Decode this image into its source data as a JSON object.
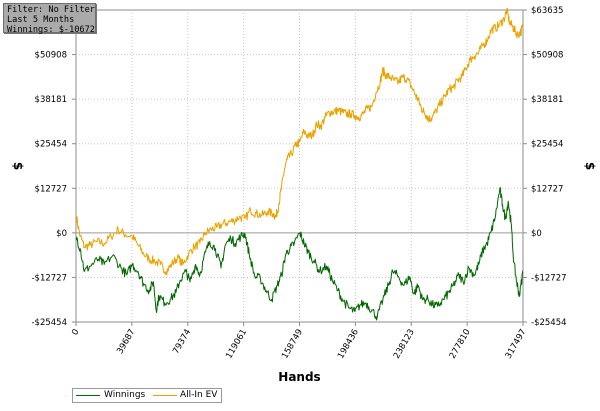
{
  "info": {
    "filter": "Filter: No Filter",
    "period": "Last  5 Months",
    "winnings": "Winnings: $-10672.12"
  },
  "chart_data": {
    "type": "line",
    "xlabel": "Hands",
    "ylabel_left": "$",
    "ylabel_right": "$",
    "xlim": [
      0,
      317497
    ],
    "ylim": [
      -25454,
      63635
    ],
    "x_ticks": [
      0,
      39687,
      79374,
      119061,
      158749,
      198436,
      238123,
      277810,
      317497
    ],
    "y_ticks": [
      -25454,
      -12727,
      0,
      12727,
      25454,
      38181,
      50908,
      63635
    ],
    "y_tick_labels": [
      "-$25454",
      "-$12727",
      "$0",
      "$12727",
      "$25454",
      "$38181",
      "$50908",
      "$63635"
    ],
    "grid": true,
    "legend": "bottom-left",
    "series": [
      {
        "name": "Winnings",
        "color": "#006600",
        "points": [
          [
            0,
            -1000
          ],
          [
            3000,
            -4500
          ],
          [
            6000,
            -11000
          ],
          [
            10000,
            -9500
          ],
          [
            16000,
            -7500
          ],
          [
            20000,
            -9000
          ],
          [
            26000,
            -6500
          ],
          [
            32000,
            -10000
          ],
          [
            36000,
            -12000
          ],
          [
            40000,
            -9000
          ],
          [
            44000,
            -11000
          ],
          [
            48000,
            -14500
          ],
          [
            52000,
            -16500
          ],
          [
            55000,
            -14000
          ],
          [
            57000,
            -22000
          ],
          [
            59000,
            -18000
          ],
          [
            63000,
            -20000
          ],
          [
            67000,
            -19000
          ],
          [
            71000,
            -17000
          ],
          [
            74000,
            -13500
          ],
          [
            78000,
            -11000
          ],
          [
            81000,
            -14000
          ],
          [
            85000,
            -9000
          ],
          [
            88000,
            -12000
          ],
          [
            92000,
            -5500
          ],
          [
            95000,
            -2500
          ],
          [
            99000,
            -4500
          ],
          [
            103000,
            -10000
          ],
          [
            106000,
            -3500
          ],
          [
            110000,
            -1500
          ],
          [
            113000,
            -3000
          ],
          [
            117000,
            -1000
          ],
          [
            120000,
            -200
          ],
          [
            123000,
            -6000
          ],
          [
            127000,
            -12500
          ],
          [
            131000,
            -13000
          ],
          [
            135000,
            -16500
          ],
          [
            139000,
            -19000
          ],
          [
            143000,
            -15000
          ],
          [
            146000,
            -12000
          ],
          [
            149000,
            -6000
          ],
          [
            152000,
            -4500
          ],
          [
            155000,
            -3000
          ],
          [
            159000,
            0
          ],
          [
            162000,
            -3000
          ],
          [
            165000,
            -5500
          ],
          [
            169000,
            -8000
          ],
          [
            173000,
            -11000
          ],
          [
            178000,
            -9500
          ],
          [
            182000,
            -13500
          ],
          [
            186000,
            -16500
          ],
          [
            190000,
            -19500
          ],
          [
            194000,
            -21500
          ],
          [
            198000,
            -22500
          ],
          [
            202000,
            -20500
          ],
          [
            206000,
            -20000
          ],
          [
            210000,
            -22000
          ],
          [
            214000,
            -24000
          ],
          [
            218000,
            -19000
          ],
          [
            222000,
            -15000
          ],
          [
            225000,
            -11000
          ],
          [
            229000,
            -12500
          ],
          [
            233000,
            -15000
          ],
          [
            237000,
            -12500
          ],
          [
            240000,
            -17500
          ],
          [
            243000,
            -15000
          ],
          [
            246000,
            -19000
          ],
          [
            250000,
            -19000
          ],
          [
            253000,
            -20500
          ],
          [
            257000,
            -21000
          ],
          [
            261000,
            -19000
          ],
          [
            265000,
            -17000
          ],
          [
            268000,
            -15000
          ],
          [
            272000,
            -12000
          ],
          [
            275000,
            -14000
          ],
          [
            279000,
            -10000
          ],
          [
            283000,
            -12000
          ],
          [
            286000,
            -9000
          ],
          [
            289000,
            -5000
          ],
          [
            292000,
            -3000
          ],
          [
            295000,
            500
          ],
          [
            298000,
            5000
          ],
          [
            301000,
            12500
          ],
          [
            303000,
            8000
          ],
          [
            305000,
            4000
          ],
          [
            307000,
            9000
          ],
          [
            309000,
            3000
          ],
          [
            311000,
            -8500
          ],
          [
            313000,
            -14000
          ],
          [
            315000,
            -18000
          ],
          [
            317497,
            -10672
          ]
        ]
      },
      {
        "name": "All-In EV",
        "color": "#e8a300",
        "points": [
          [
            0,
            5000
          ],
          [
            3000,
            -1000
          ],
          [
            6000,
            -4000
          ],
          [
            10000,
            -3500
          ],
          [
            15000,
            -2500
          ],
          [
            20000,
            -3000
          ],
          [
            25000,
            -1000
          ],
          [
            30000,
            1000
          ],
          [
            35000,
            -500
          ],
          [
            40000,
            -1000
          ],
          [
            44000,
            -3500
          ],
          [
            48000,
            -6000
          ],
          [
            52000,
            -7500
          ],
          [
            56000,
            -8000
          ],
          [
            60000,
            -9000
          ],
          [
            64000,
            -11000
          ],
          [
            68000,
            -9000
          ],
          [
            72000,
            -7000
          ],
          [
            76000,
            -9000
          ],
          [
            80000,
            -6000
          ],
          [
            84000,
            -4000
          ],
          [
            88000,
            -3000
          ],
          [
            92000,
            0
          ],
          [
            96000,
            1000
          ],
          [
            100000,
            1500
          ],
          [
            104000,
            2500
          ],
          [
            108000,
            3000
          ],
          [
            112000,
            3500
          ],
          [
            116000,
            4500
          ],
          [
            120000,
            4000
          ],
          [
            124000,
            6500
          ],
          [
            128000,
            5500
          ],
          [
            132000,
            5000
          ],
          [
            136000,
            6000
          ],
          [
            140000,
            5500
          ],
          [
            142000,
            4500
          ],
          [
            144000,
            8000
          ],
          [
            146000,
            13000
          ],
          [
            148000,
            18000
          ],
          [
            150000,
            21000
          ],
          [
            153000,
            22500
          ],
          [
            156000,
            25000
          ],
          [
            159000,
            26000
          ],
          [
            162000,
            29000
          ],
          [
            165000,
            27500
          ],
          [
            168000,
            28000
          ],
          [
            171000,
            31000
          ],
          [
            174000,
            30500
          ],
          [
            177000,
            33000
          ],
          [
            180000,
            34500
          ],
          [
            183000,
            34500
          ],
          [
            186000,
            35000
          ],
          [
            189000,
            34500
          ],
          [
            192000,
            34000
          ],
          [
            195000,
            34000
          ],
          [
            198000,
            33500
          ],
          [
            201000,
            33000
          ],
          [
            204000,
            34000
          ],
          [
            207000,
            35500
          ],
          [
            210000,
            36000
          ],
          [
            213000,
            40000
          ],
          [
            216000,
            43000
          ],
          [
            218000,
            46500
          ],
          [
            220000,
            45000
          ],
          [
            223000,
            44500
          ],
          [
            226000,
            43500
          ],
          [
            229000,
            43000
          ],
          [
            232000,
            44500
          ],
          [
            235000,
            44000
          ],
          [
            238000,
            42000
          ],
          [
            241000,
            39500
          ],
          [
            243000,
            38000
          ],
          [
            245000,
            36000
          ],
          [
            247000,
            34500
          ],
          [
            249000,
            33500
          ],
          [
            251000,
            32500
          ],
          [
            253000,
            33000
          ],
          [
            256000,
            35000
          ],
          [
            259000,
            37000
          ],
          [
            262000,
            39000
          ],
          [
            265000,
            41000
          ],
          [
            268000,
            41500
          ],
          [
            271000,
            43500
          ],
          [
            274000,
            44500
          ],
          [
            277000,
            47000
          ],
          [
            280000,
            49500
          ],
          [
            283000,
            50500
          ],
          [
            286000,
            51500
          ],
          [
            289000,
            53500
          ],
          [
            292000,
            55000
          ],
          [
            295000,
            58000
          ],
          [
            298000,
            58500
          ],
          [
            301000,
            59500
          ],
          [
            304000,
            61000
          ],
          [
            306000,
            63635
          ],
          [
            308000,
            60000
          ],
          [
            310000,
            59000
          ],
          [
            312000,
            57500
          ],
          [
            314000,
            56500
          ],
          [
            316000,
            57500
          ],
          [
            317497,
            59000
          ]
        ]
      }
    ]
  }
}
